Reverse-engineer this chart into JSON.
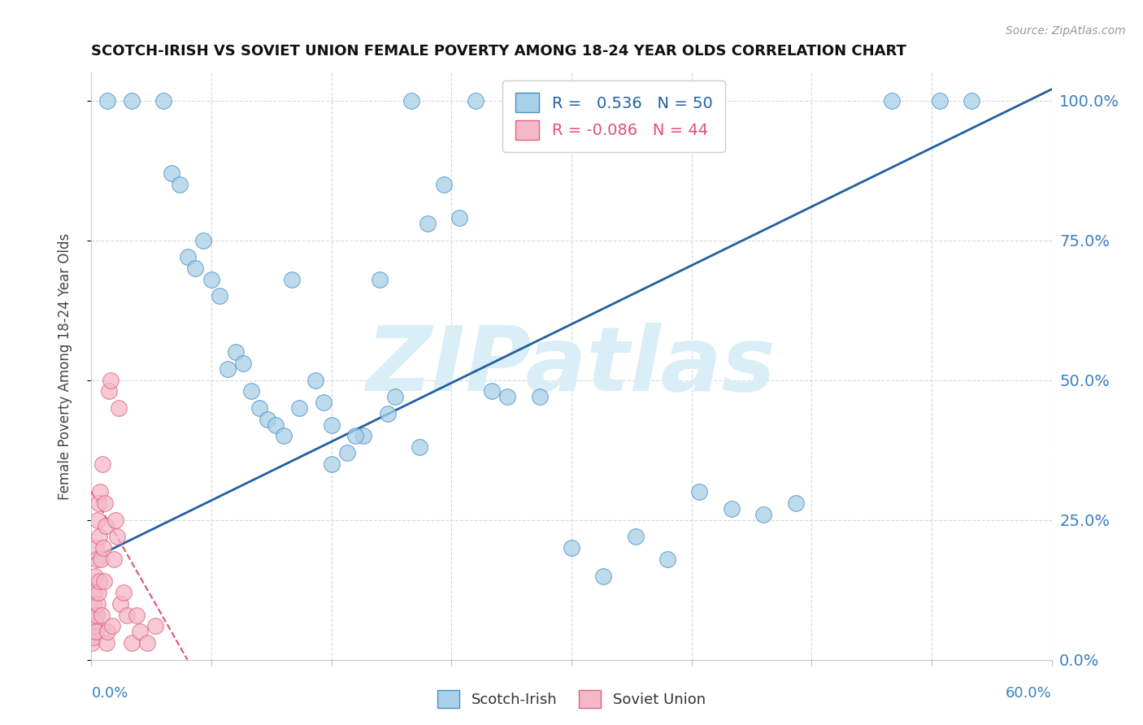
{
  "title": "SCOTCH-IRISH VS SOVIET UNION FEMALE POVERTY AMONG 18-24 YEAR OLDS CORRELATION CHART",
  "source": "Source: ZipAtlas.com",
  "ylabel": "Female Poverty Among 18-24 Year Olds",
  "legend_label1": "Scotch-Irish",
  "legend_label2": "Soviet Union",
  "R1": 0.536,
  "N1": 50,
  "R2": -0.086,
  "N2": 44,
  "blue_color": "#a8d0e8",
  "pink_color": "#f4b8c8",
  "blue_edge_color": "#4a90c4",
  "pink_edge_color": "#e06080",
  "blue_line_color": "#2060a0",
  "pink_line_color": "#e05070",
  "watermark_color": "#daeef8",
  "watermark_text": "ZIPatlas",
  "background_color": "#ffffff",
  "axis_label_color": "#3a7fc1",
  "source_color": "#999999",
  "title_color": "#111111",
  "grid_color": "#d8d8d8",
  "xlim": [
    0,
    60
  ],
  "ylim": [
    0,
    105
  ],
  "ytick_values": [
    0,
    25,
    50,
    75,
    100
  ],
  "blue_line_x": [
    0,
    60
  ],
  "blue_line_y": [
    18,
    102
  ],
  "pink_line_x": [
    0,
    6
  ],
  "pink_line_y": [
    30,
    0
  ],
  "si_x": [
    1.0,
    2.5,
    4.5,
    5.0,
    5.5,
    6.0,
    6.5,
    7.0,
    7.5,
    8.0,
    8.5,
    9.0,
    9.5,
    10.0,
    10.5,
    11.0,
    11.5,
    12.0,
    12.5,
    13.0,
    14.0,
    14.5,
    15.0,
    16.0,
    17.0,
    18.0,
    19.0,
    20.0,
    21.0,
    22.0,
    23.0,
    24.0,
    25.0,
    26.0,
    28.0,
    30.0,
    32.0,
    34.0,
    36.0,
    38.0,
    40.0,
    42.0,
    44.0,
    50.0,
    53.0,
    55.0,
    15.0,
    16.5,
    18.5,
    20.5
  ],
  "si_y": [
    100,
    100,
    100,
    87,
    85,
    72,
    70,
    75,
    68,
    65,
    52,
    55,
    53,
    48,
    45,
    43,
    42,
    40,
    68,
    45,
    50,
    46,
    42,
    37,
    40,
    68,
    47,
    100,
    78,
    85,
    79,
    100,
    48,
    47,
    47,
    20,
    15,
    22,
    18,
    30,
    27,
    26,
    28,
    100,
    100,
    100,
    35,
    40,
    44,
    38
  ],
  "su_x": [
    0.05,
    0.08,
    0.1,
    0.12,
    0.15,
    0.18,
    0.2,
    0.22,
    0.25,
    0.28,
    0.3,
    0.32,
    0.35,
    0.38,
    0.4,
    0.42,
    0.45,
    0.48,
    0.5,
    0.55,
    0.6,
    0.65,
    0.7,
    0.75,
    0.8,
    0.85,
    0.9,
    0.95,
    1.0,
    1.1,
    1.2,
    1.3,
    1.4,
    1.5,
    1.6,
    1.7,
    1.8,
    2.0,
    2.2,
    2.5,
    2.8,
    3.0,
    3.5,
    4.0
  ],
  "su_y": [
    3,
    5,
    8,
    4,
    10,
    6,
    12,
    7,
    15,
    5,
    20,
    8,
    18,
    25,
    10,
    28,
    12,
    22,
    14,
    30,
    18,
    8,
    35,
    20,
    14,
    28,
    24,
    3,
    5,
    48,
    50,
    6,
    18,
    25,
    22,
    45,
    10,
    12,
    8,
    3,
    8,
    5,
    3,
    6
  ]
}
